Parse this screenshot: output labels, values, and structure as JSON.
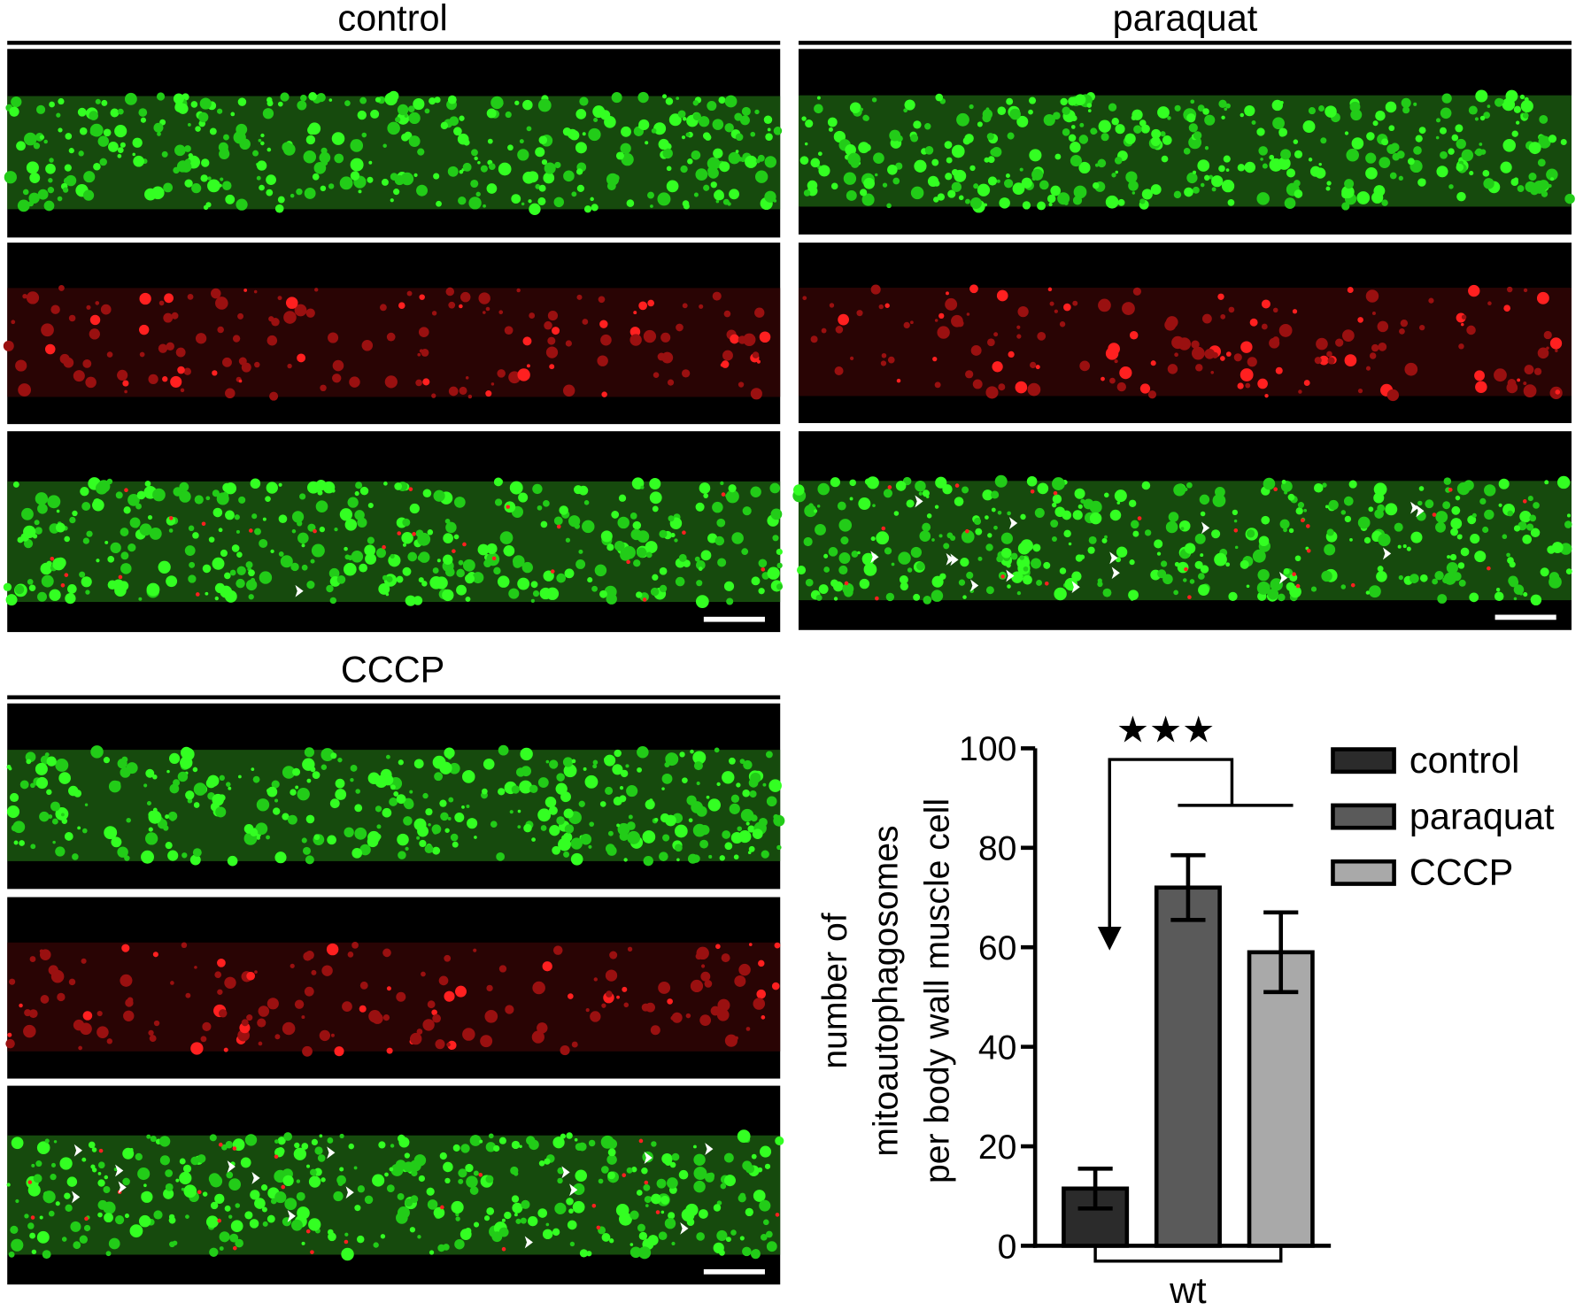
{
  "panels": [
    {
      "title": "control"
    },
    {
      "title": "paraquat"
    },
    {
      "title": "CCCP"
    }
  ],
  "chart_data": {
    "type": "bar",
    "categories": [
      "wt"
    ],
    "series": [
      {
        "name": "control",
        "color": "#2b2b2b",
        "values": [
          11.5
        ],
        "errors": [
          4
        ]
      },
      {
        "name": "paraquat",
        "color": "#5a5a5a",
        "values": [
          72
        ],
        "errors": [
          6.5
        ]
      },
      {
        "name": "CCCP",
        "color": "#a9a9a9",
        "values": [
          59
        ],
        "errors": [
          8
        ]
      }
    ],
    "ylabel": [
      "number of",
      "mitoautophagosomes",
      "per body wall muscle cell"
    ],
    "ylim": [
      0,
      100
    ],
    "yticks": [
      0,
      20,
      40,
      60,
      80,
      100
    ],
    "annotation": "★★★"
  }
}
